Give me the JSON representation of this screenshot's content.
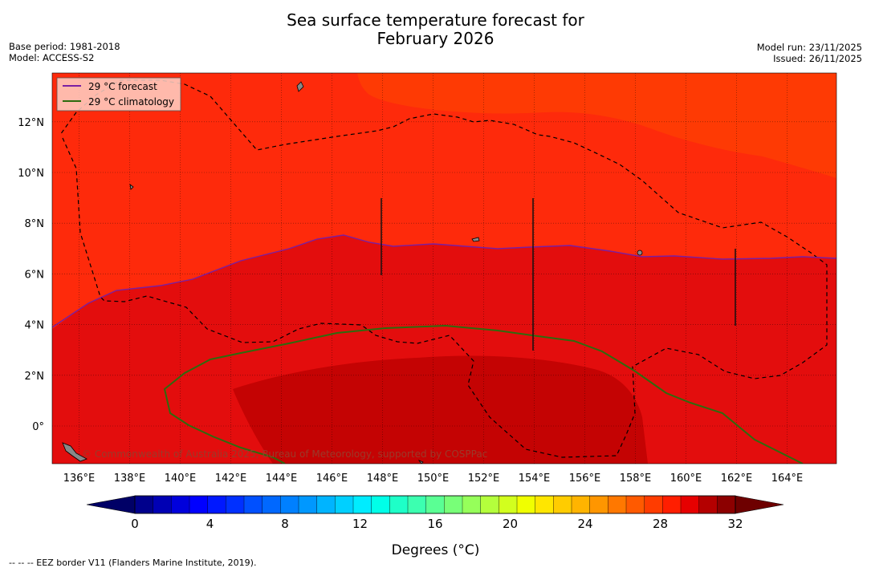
{
  "header": {
    "title_line1": "Sea surface temperature forecast for",
    "title_line2": "February 2026",
    "base_period": "Base period: 1981-2018",
    "model": "Model: ACCESS-S2",
    "model_run": "Model run: 23/11/2025",
    "issued": "Issued: 26/11/2025"
  },
  "map": {
    "lon_labels": [
      "136°E",
      "138°E",
      "140°E",
      "142°E",
      "144°E",
      "146°E",
      "148°E",
      "150°E",
      "152°E",
      "154°E",
      "156°E",
      "158°E",
      "160°E",
      "162°E",
      "164°E"
    ],
    "lat_labels": [
      "12°N",
      "10°N",
      "8°N",
      "6°N",
      "4°N",
      "2°N",
      "0°"
    ],
    "legend": [
      {
        "label": "29 °C  forecast",
        "color": "#7a1fa2"
      },
      {
        "label": "29 °C  climatology",
        "color": "#2e6b0e"
      }
    ],
    "copyright": "© Commonwealth of Australia 2025, Bureau of Meteorology, supported by COSPPac",
    "fill_colors": {
      "bg": "#fe2a0b",
      "upper_band": "#fe3a04",
      "mid_band": "#e30d0d",
      "core": "#c40303"
    }
  },
  "colorbar": {
    "tick_labels": [
      "0",
      "4",
      "8",
      "12",
      "16",
      "20",
      "24",
      "28",
      "32"
    ],
    "label": "Degrees (°C)",
    "colors": [
      "#00008c",
      "#0000b4",
      "#0000dc",
      "#0000ff",
      "#0018ff",
      "#0030ff",
      "#0050ff",
      "#0068ff",
      "#0080ff",
      "#0098ff",
      "#00b4ff",
      "#00d0ff",
      "#00ecff",
      "#00ffe8",
      "#1effc8",
      "#3cffb0",
      "#5aff94",
      "#78ff78",
      "#96ff5a",
      "#b4ff3c",
      "#d2ff1e",
      "#f0ff00",
      "#ffe600",
      "#ffcc00",
      "#ffb400",
      "#ff9600",
      "#ff7800",
      "#ff5a00",
      "#ff3c00",
      "#ff1e00",
      "#e60000",
      "#b40000",
      "#8c0000"
    ],
    "under_color": "#000066",
    "over_color": "#6e0000"
  },
  "footnote": "--  --  -- EEZ border V11 (Flanders Marine Institute, 2019)."
}
